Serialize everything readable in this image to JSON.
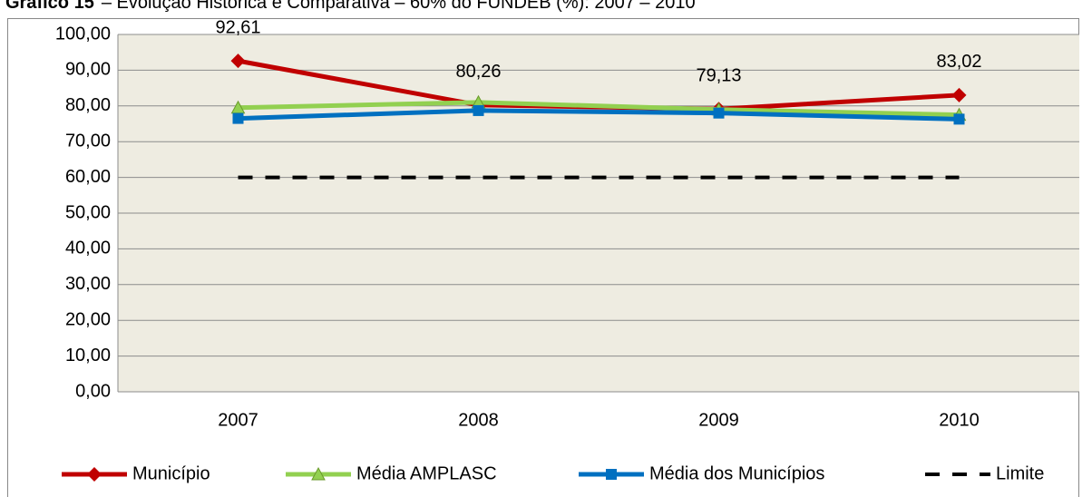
{
  "chart_data": {
    "type": "line",
    "title_prefix": "Gráfico 15",
    "title": "– Evolução Histórica e Comparativa – 60% do FUNDEB (%): 2007 – 2010",
    "categories": [
      "2007",
      "2008",
      "2009",
      "2010"
    ],
    "series": [
      {
        "name": "Município",
        "color": "#c00000",
        "marker": "diamond",
        "values": [
          92.61,
          80.26,
          79.13,
          83.02
        ],
        "value_labels": [
          "92,61",
          "80,26",
          "79,13",
          "83,02"
        ]
      },
      {
        "name": "Média AMPLASC",
        "color": "#92d050",
        "marker": "triangle",
        "values": [
          79.5,
          81.0,
          79.0,
          77.5
        ]
      },
      {
        "name": "Média dos Municípios",
        "color": "#0070c0",
        "marker": "square",
        "values": [
          76.5,
          78.7,
          78.0,
          76.3
        ]
      },
      {
        "name": "Limite",
        "color": "#000000",
        "dashed": true,
        "values": [
          60,
          60,
          60,
          60
        ]
      }
    ],
    "ylim": [
      0,
      100
    ],
    "yticks": [
      {
        "value": 0,
        "label": "0,00"
      },
      {
        "value": 10,
        "label": "10,00"
      },
      {
        "value": 20,
        "label": "20,00"
      },
      {
        "value": 30,
        "label": "30,00"
      },
      {
        "value": 40,
        "label": "40,00"
      },
      {
        "value": 50,
        "label": "50,00"
      },
      {
        "value": 60,
        "label": "60,00"
      },
      {
        "value": 70,
        "label": "70,00"
      },
      {
        "value": 80,
        "label": "80,00"
      },
      {
        "value": 90,
        "label": "90,00"
      },
      {
        "value": 100,
        "label": "100,00"
      }
    ],
    "grid": true,
    "legend": "bottom",
    "plot_background": "#eeece1"
  }
}
